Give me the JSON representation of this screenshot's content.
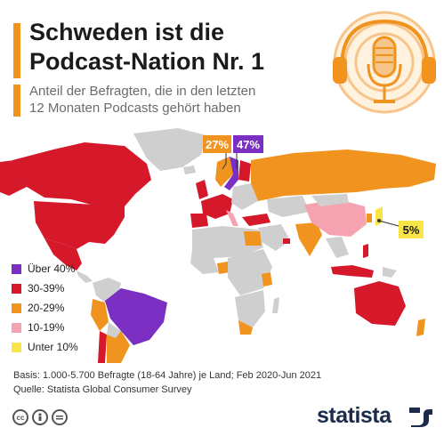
{
  "title_lines": [
    "Schweden ist die",
    "Podcast-Nation Nr. 1"
  ],
  "subtitle_lines": [
    "Anteil der Befragten, die in den letzten",
    "12 Monaten Podcasts gehört haben"
  ],
  "chart_data": {
    "type": "choropleth",
    "legend": [
      {
        "label": "Über 40%",
        "color": "#7a2fc2"
      },
      {
        "label": "30-39%",
        "color": "#d6182b"
      },
      {
        "label": "20-29%",
        "color": "#f0931f"
      },
      {
        "label": "10-19%",
        "color": "#f5a3b1"
      },
      {
        "label": "Unter 10%",
        "color": "#f9e548"
      }
    ],
    "callouts": [
      {
        "label": "27%",
        "color": "#f0931f"
      },
      {
        "label": "47%",
        "color": "#7a2fc2"
      },
      {
        "label": "5%",
        "color": "#f9e548"
      }
    ],
    "no_data_color": "#cfcfcf"
  },
  "footnote_lines": [
    "Basis: 1.000-5.700 Befragte (18-64 Jahre) je Land; Feb 2020-Jun 2021",
    "Quelle: Statista Global Consumer Survey"
  ],
  "license_icons": [
    "cc",
    "by",
    "nd"
  ],
  "brand": "statista",
  "icons": {
    "header": "podcast-headphones-microphone-icon",
    "brand": "statista-logo-icon"
  }
}
